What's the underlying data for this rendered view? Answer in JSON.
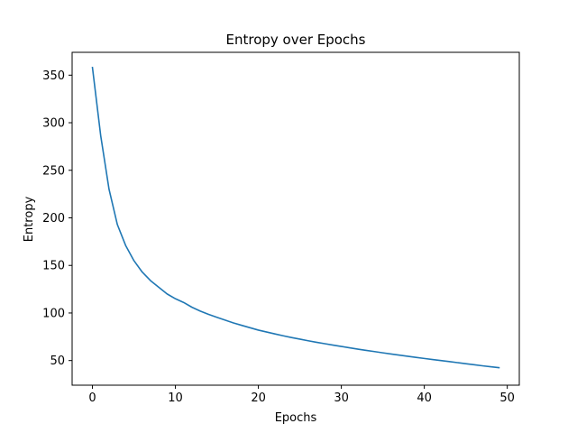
{
  "chart_data": {
    "type": "line",
    "title": "Entropy over Epochs",
    "xlabel": "Epochs",
    "ylabel": "Entropy",
    "xlim": [
      -2.45,
      51.45
    ],
    "ylim": [
      24.1,
      374.0
    ],
    "xticks": [
      0,
      10,
      20,
      30,
      40,
      50
    ],
    "yticks": [
      50,
      100,
      150,
      200,
      250,
      300,
      350
    ],
    "grid": false,
    "series": [
      {
        "color": "#1f77b4",
        "x": [
          0,
          1,
          2,
          3,
          4,
          5,
          6,
          7,
          8,
          9,
          10,
          11,
          12,
          13,
          14,
          15,
          16,
          17,
          18,
          19,
          20,
          21,
          22,
          23,
          24,
          25,
          26,
          27,
          28,
          29,
          30,
          31,
          32,
          33,
          34,
          35,
          36,
          37,
          38,
          39,
          40,
          41,
          42,
          43,
          44,
          45,
          46,
          47,
          48,
          49
        ],
        "values": [
          358,
          286,
          230,
          193,
          171,
          155,
          143,
          134,
          127,
          120,
          115,
          111,
          106,
          102,
          98.5,
          95.5,
          92.5,
          89.5,
          87,
          84.5,
          82,
          80,
          78,
          76,
          74.2,
          72.5,
          70.8,
          69.2,
          67.7,
          66.2,
          64.8,
          63.4,
          62,
          60.7,
          59.4,
          58.1,
          56.9,
          55.7,
          54.5,
          53.3,
          52.2,
          51.1,
          50,
          48.9,
          47.8,
          46.7,
          45.6,
          44.5,
          43.5,
          42.5
        ]
      }
    ]
  }
}
